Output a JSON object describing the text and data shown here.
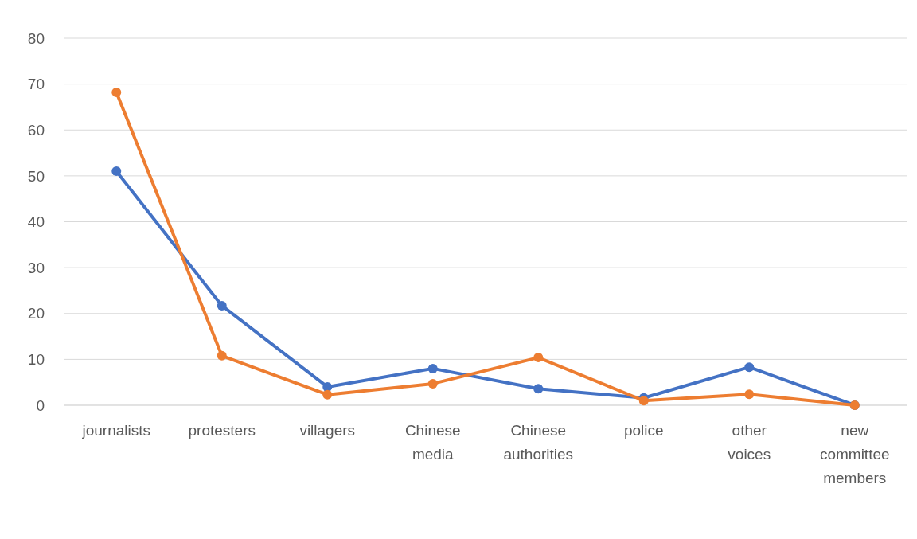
{
  "chart_data": {
    "type": "line",
    "categories": [
      "journalists",
      "protesters",
      "villagers",
      "Chinese media",
      "Chinese authorities",
      "police",
      "other voices",
      "new committee members"
    ],
    "series": [
      {
        "color": "#4472c4",
        "values": [
          51,
          21.7,
          4,
          8,
          3.6,
          1.6,
          8.3,
          0
        ]
      },
      {
        "color": "#ed7d31",
        "values": [
          68.2,
          10.8,
          2.3,
          4.7,
          10.4,
          1,
          2.4,
          0
        ]
      }
    ],
    "ylim": [
      0,
      80
    ],
    "yticks": [
      0,
      10,
      20,
      30,
      40,
      50,
      60,
      70,
      80
    ],
    "grid": "y",
    "marker": "circle",
    "line_style": "solid",
    "legend": false
  }
}
